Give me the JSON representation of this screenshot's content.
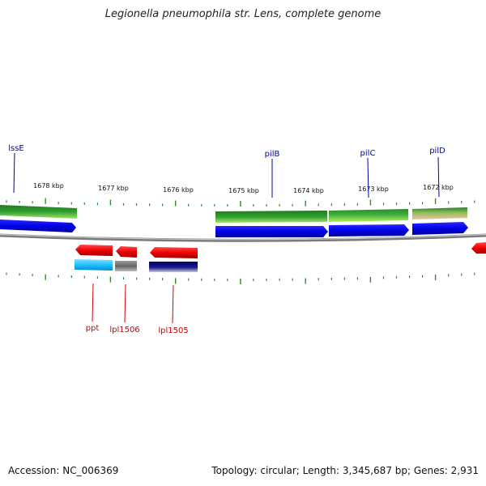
{
  "title": "Legionella pneumophila str. Lens, complete genome",
  "footer": {
    "accession": "Accession: NC_006369",
    "summary": "Topology: circular; Length: 3,345,687 bp; Genes: 2,931"
  },
  "colors": {
    "forward_label": "#0000aa",
    "reverse_label": "#cc0000",
    "tick": "#2e8b2e",
    "backbone": "#888888",
    "cds_forward": "#0000ee",
    "cds_reverse": "#ee0000"
  },
  "ticks": [
    {
      "label": "1678 kbp"
    },
    {
      "label": "1677 kbp"
    },
    {
      "label": "1676 kbp"
    },
    {
      "label": "1675 kbp"
    },
    {
      "label": "1674 kbp"
    },
    {
      "label": "1673 kbp"
    },
    {
      "label": "1672 kbp"
    }
  ],
  "genes": {
    "forward": [
      {
        "name": "lssE"
      },
      {
        "name": "pilB"
      },
      {
        "name": "pilC"
      },
      {
        "name": "pilD"
      }
    ],
    "reverse": [
      {
        "name": "ppt"
      },
      {
        "name": "lpl1506"
      },
      {
        "name": "lpl1505"
      }
    ]
  }
}
